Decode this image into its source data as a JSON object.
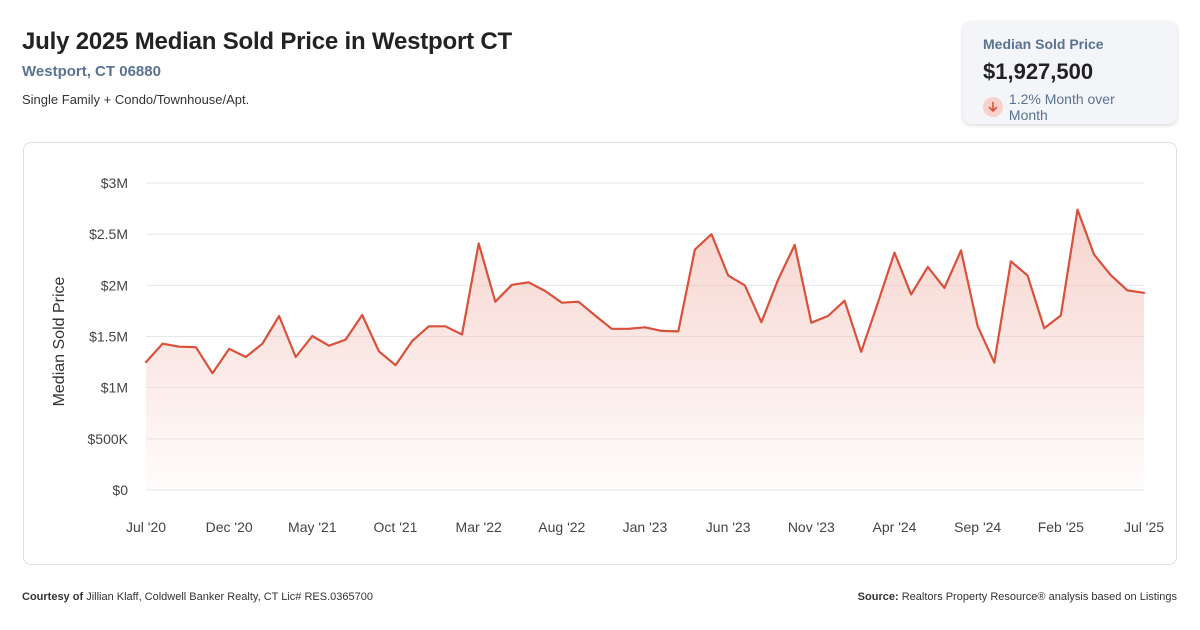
{
  "header": {
    "title": "July 2025 Median Sold Price in Westport CT",
    "location": "Westport, CT 06880",
    "property_types": "Single Family + Condo/Townhouse/Apt."
  },
  "kpi": {
    "label": "Median Sold Price",
    "value": "$1,927,500",
    "change": "1.2% Month over Month",
    "direction_icon": "arrow-down-icon"
  },
  "colors": {
    "line": "#d9513b",
    "fill": "#f4c5bd",
    "grid": "#e5e7eb",
    "accent_text": "#5a7292"
  },
  "footer": {
    "courtesy_label": "Courtesy of",
    "courtesy_text": "Jillian Klaff, Coldwell Banker Realty, CT Lic# RES.0365700",
    "source_label": "Source:",
    "source_text": "Realtors Property Resource® analysis based on Listings"
  },
  "chart_data": {
    "type": "area",
    "title": "July 2025 Median Sold Price in Westport CT",
    "xlabel": "",
    "ylabel": "Median Sold Price",
    "ylim": [
      0,
      3000000
    ],
    "y_ticks": [
      0,
      500000,
      1000000,
      1500000,
      2000000,
      2500000,
      3000000
    ],
    "y_tick_labels": [
      "$0",
      "$500K",
      "$1M",
      "$1.5M",
      "$2M",
      "$2.5M",
      "$3M"
    ],
    "x_tick_labels": [
      "Jul '20",
      "Dec '20",
      "May '21",
      "Oct '21",
      "Mar '22",
      "Aug '22",
      "Jan '23",
      "Jun '23",
      "Nov '23",
      "Apr '24",
      "Sep '24",
      "Feb '25",
      "Jul '25"
    ],
    "x_tick_step_months": 5,
    "grid": true,
    "legend": "none",
    "x": [
      "2020-07",
      "2020-08",
      "2020-09",
      "2020-10",
      "2020-11",
      "2020-12",
      "2021-01",
      "2021-02",
      "2021-03",
      "2021-04",
      "2021-05",
      "2021-06",
      "2021-07",
      "2021-08",
      "2021-09",
      "2021-10",
      "2021-11",
      "2021-12",
      "2022-01",
      "2022-02",
      "2022-03",
      "2022-04",
      "2022-05",
      "2022-06",
      "2022-07",
      "2022-08",
      "2022-09",
      "2022-10",
      "2022-11",
      "2022-12",
      "2023-01",
      "2023-02",
      "2023-03",
      "2023-04",
      "2023-05",
      "2023-06",
      "2023-07",
      "2023-08",
      "2023-09",
      "2023-10",
      "2023-11",
      "2023-12",
      "2024-01",
      "2024-02",
      "2024-03",
      "2024-04",
      "2024-05",
      "2024-06",
      "2024-07",
      "2024-08",
      "2024-09",
      "2024-10",
      "2024-11",
      "2024-12",
      "2025-01",
      "2025-02",
      "2025-03",
      "2025-04",
      "2025-05",
      "2025-06",
      "2025-07"
    ],
    "series": [
      {
        "values": [
          1250000,
          1430000,
          1400000,
          1395000,
          1140000,
          1380000,
          1300000,
          1430000,
          1700000,
          1300000,
          1505000,
          1410000,
          1470000,
          1710000,
          1355000,
          1220000,
          1455000,
          1600000,
          1600000,
          1520000,
          2410000,
          1840000,
          2005000,
          2030000,
          1945000,
          1830000,
          1840000,
          1705000,
          1575000,
          1575000,
          1590000,
          1555000,
          1550000,
          2350000,
          2500000,
          2095000,
          2000000,
          1640000,
          2055000,
          2395000,
          1635000,
          1700000,
          1850000,
          1350000,
          1830000,
          2320000,
          1910000,
          2180000,
          1975000,
          2340000,
          1600000,
          1245000,
          2235000,
          2095000,
          1580000,
          1705000,
          2740000,
          2300000,
          2100000,
          1950000,
          1927500
        ]
      }
    ]
  }
}
